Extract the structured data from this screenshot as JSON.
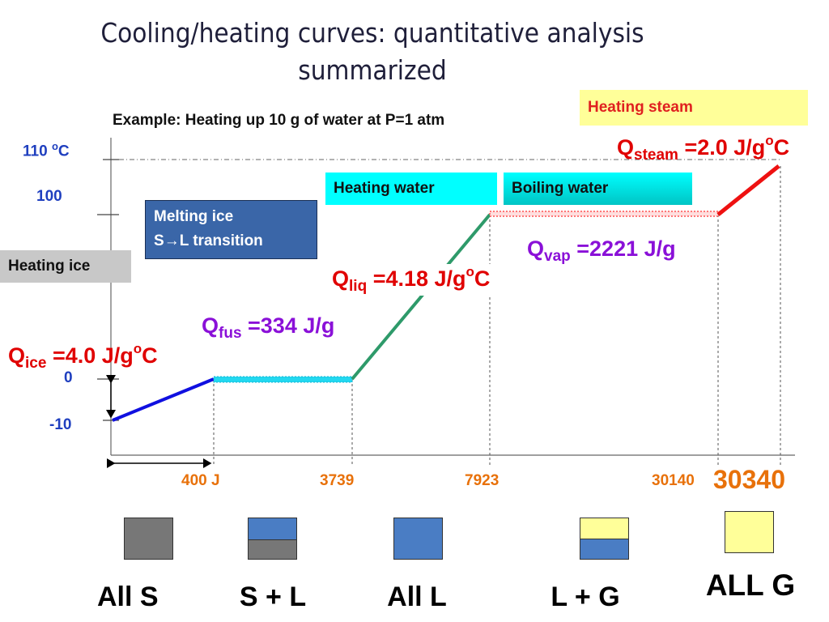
{
  "title_line1": "Cooling/heating curves: quantitative analysis",
  "title_line2": "summarized",
  "example": "Example: Heating up 10 g of water at P=1 atm",
  "y_labels": {
    "t110": "110",
    "t110_sup": "o",
    "t110_unit": "C",
    "t100": "100",
    "t0": "0",
    "tm10": "-10"
  },
  "boxes": {
    "heating_ice": "Heating ice",
    "melting_ice_l1": "Melting ice",
    "melting_ice_l2_a": "S",
    "melting_ice_l2_b": "L transition",
    "heating_water": "Heating water",
    "boiling_water": "Boiling water",
    "heating_steam": "Heating steam"
  },
  "q_labels": {
    "ice": {
      "main": "Q",
      "sub": "ice",
      "value": " =4.0 J/g",
      "sup": "o",
      "unit": "C"
    },
    "fus": {
      "main": "Q",
      "sub": "fus",
      "value": " =334 J/g"
    },
    "liq": {
      "main": "Q",
      "sub": "liq",
      "value": " =4.18 J/g",
      "sup": "o",
      "unit": "C"
    },
    "vap": {
      "main": "Q",
      "sub": "vap",
      "value": " =2221 J/g"
    },
    "steam": {
      "main": "Q",
      "sub": "steam",
      "value": " =2.0 J/g",
      "sup": "o",
      "unit": "C"
    }
  },
  "x_labels": {
    "e400": "400 J",
    "e3739": "3739",
    "e7923": "7923",
    "e30140": "30140",
    "e30340": "30340"
  },
  "states": {
    "all_s": "All  S",
    "s_l": "S + L",
    "all_l": "All L",
    "l_g": "L + G",
    "all_g": "ALL G"
  },
  "colors": {
    "ice_line": "#1010e0",
    "fus_line": "#22d8f0",
    "liq_line": "#2e9a6a",
    "vap_line": "#ff5050",
    "steam_line": "#ee1111",
    "solid": "#777777",
    "liquid": "#4a7dc4",
    "gas": "#ffff99",
    "heating_ice_bg": "#c8c8c8",
    "melting_bg": "#3a66a8",
    "cyan_bg": "#00ffff",
    "steam_bg": "#ffff99"
  },
  "chart_data": {
    "type": "line",
    "xlabel": "",
    "ylabel": "",
    "series": [
      {
        "name": "Heating ice",
        "x": [
          0,
          400
        ],
        "y": [
          -10,
          0
        ]
      },
      {
        "name": "Melting ice",
        "x": [
          400,
          3739
        ],
        "y": [
          0,
          0
        ]
      },
      {
        "name": "Heating water",
        "x": [
          3739,
          7923
        ],
        "y": [
          0,
          100
        ]
      },
      {
        "name": "Boiling water",
        "x": [
          7923,
          30140
        ],
        "y": [
          100,
          100
        ]
      },
      {
        "name": "Heating steam",
        "x": [
          30140,
          30340
        ],
        "y": [
          100,
          110
        ]
      }
    ]
  }
}
